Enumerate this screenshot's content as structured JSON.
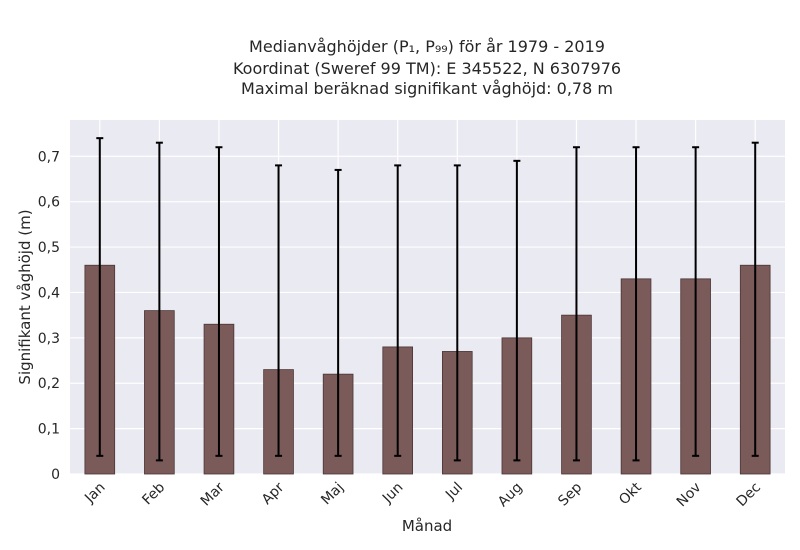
{
  "chart_data": {
    "type": "bar",
    "title_lines": [
      "Medianvåghöjder (P₁, P₉₉) för år 1979 - 2019",
      "Koordinat (Sweref 99 TM): E 345522, N 6307976",
      "Maximal beräknad signifikant våghöjd: 0,78 m"
    ],
    "xlabel": "Månad",
    "ylabel": "Signifikant våghöjd (m)",
    "categories": [
      "Jan",
      "Feb",
      "Mar",
      "Apr",
      "Maj",
      "Jun",
      "Jul",
      "Aug",
      "Sep",
      "Okt",
      "Nov",
      "Dec"
    ],
    "series": [
      {
        "values": [
          0.46,
          0.36,
          0.33,
          0.23,
          0.22,
          0.28,
          0.27,
          0.3,
          0.35,
          0.43,
          0.43,
          0.46
        ],
        "p1": [
          0.04,
          0.03,
          0.04,
          0.04,
          0.04,
          0.04,
          0.03,
          0.03,
          0.03,
          0.03,
          0.04,
          0.04
        ],
        "p99": [
          0.74,
          0.73,
          0.72,
          0.68,
          0.67,
          0.68,
          0.68,
          0.69,
          0.72,
          0.72,
          0.72,
          0.73
        ]
      }
    ],
    "ylim": [
      0,
      0.78
    ],
    "yticks": [
      "0",
      "0,1",
      "0,2",
      "0,3",
      "0,4",
      "0,5",
      "0,6",
      "0,7"
    ],
    "grid": true,
    "colors": {
      "bar": "#7b5a5a",
      "bar_edge": "#4a3535",
      "plot_bg": "#eaeaf2",
      "grid": "#ffffff",
      "error": "#000000"
    }
  }
}
